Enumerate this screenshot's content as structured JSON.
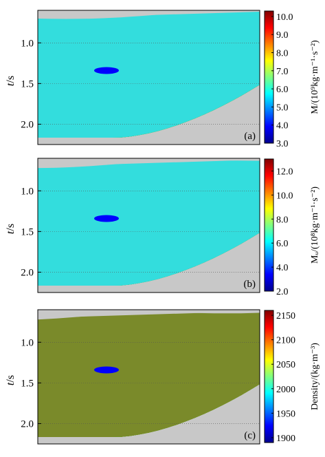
{
  "chart_data": [
    {
      "type": "heatmap",
      "panel_label": "(a)",
      "ylabel_main": "t",
      "ylabel_unit": "/s",
      "yticks": [
        "1.0",
        "1.5",
        "2.0"
      ],
      "ytick_values": [
        1.0,
        1.5,
        2.0
      ],
      "ylim": [
        0.6,
        2.25
      ],
      "colorbar_title": "M/(10⁹kg·m⁻¹·s⁻²)",
      "colorbar_ticks": [
        "10.0",
        "9.0",
        "8.0",
        "7.0",
        "6.0",
        "5.0",
        "4.0",
        "3.0"
      ],
      "colorbar_range": [
        3.0,
        10.3
      ]
    },
    {
      "type": "heatmap",
      "panel_label": "(b)",
      "ylabel_main": "t",
      "ylabel_unit": "/s",
      "yticks": [
        "1.0",
        "1.5",
        "2.0"
      ],
      "ytick_values": [
        1.0,
        1.5,
        2.0
      ],
      "ylim": [
        0.6,
        2.25
      ],
      "colorbar_title": "Mᵤ/(10⁸kg·m⁻¹·s⁻²)",
      "colorbar_ticks": [
        "12.0",
        "10.0",
        "8.0",
        "6.0",
        "4.0",
        "2.0"
      ],
      "colorbar_range": [
        2.0,
        13.0
      ]
    },
    {
      "type": "heatmap",
      "panel_label": "(c)",
      "ylabel_main": "t",
      "ylabel_unit": "/s",
      "yticks": [
        "1.0",
        "1.5",
        "2.0"
      ],
      "ytick_values": [
        1.0,
        1.5,
        2.0
      ],
      "ylim": [
        0.6,
        2.25
      ],
      "colorbar_title": "Density/(kg·m⁻³)",
      "colorbar_ticks": [
        "2150",
        "2100",
        "2050",
        "2000",
        "1950",
        "1900"
      ],
      "colorbar_range": [
        1890,
        2160
      ]
    }
  ],
  "colors": {
    "background_masked": "#c8c8c8",
    "jet": [
      "#00008f",
      "#0000ff",
      "#0080ff",
      "#00ffff",
      "#80ff80",
      "#ffff00",
      "#ff8000",
      "#ff0000",
      "#800000"
    ],
    "layer_cyan": "#33dddd",
    "layer_green": "#44cc33",
    "layer_olive": "#7a8a2a",
    "layer_red": "#e03a1a",
    "layer_orange": "#f08a10",
    "layer_yellow": "#ffee44"
  }
}
